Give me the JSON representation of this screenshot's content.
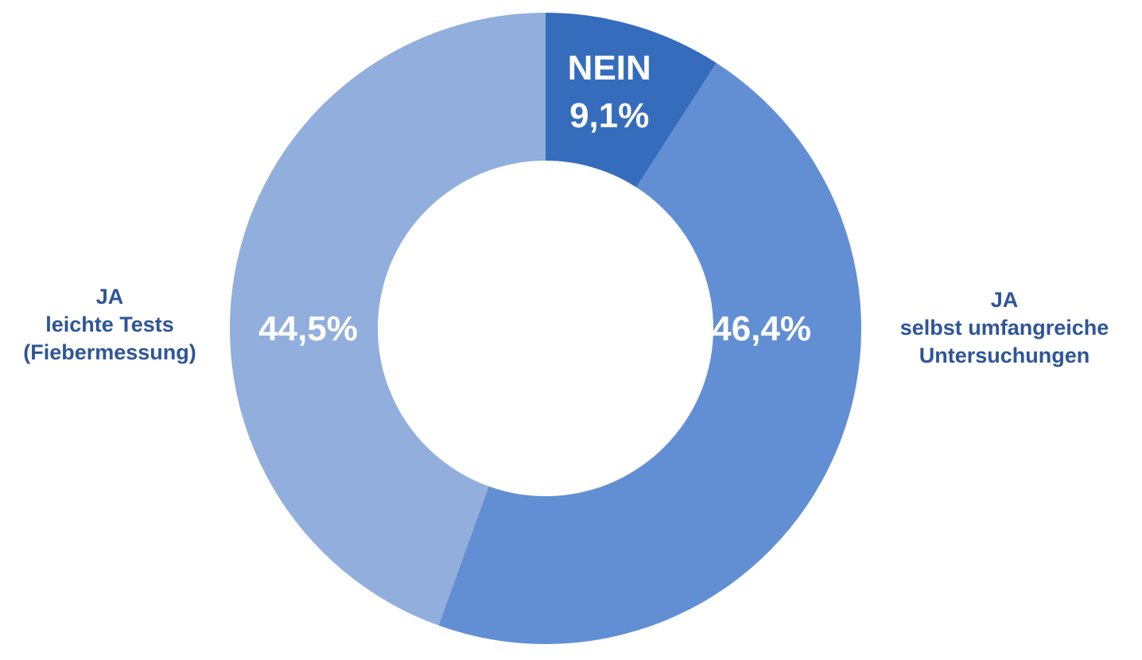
{
  "chart_data": {
    "type": "pie",
    "donut": true,
    "slices": [
      {
        "value": 9.1,
        "value_label": "9,1%",
        "inner_label": "NEIN",
        "outer_label_lines": [],
        "color": "#356CBC"
      },
      {
        "value": 46.4,
        "value_label": "46,4%",
        "inner_label": "",
        "outer_label_lines": [
          "JA",
          "selbst umfangreiche",
          "Untersuchungen"
        ],
        "color": "#628FD3"
      },
      {
        "value": 44.5,
        "value_label": "44,5%",
        "inner_label": "",
        "outer_label_lines": [
          "JA",
          "leichte Tests",
          "(Fiebermessung)"
        ],
        "color": "#91AEDD"
      }
    ],
    "start_angle": "12 o'clock",
    "direction": "clockwise",
    "legend": "none",
    "label_color": "#2E5597",
    "value_label_color": "#FFFFFF"
  }
}
